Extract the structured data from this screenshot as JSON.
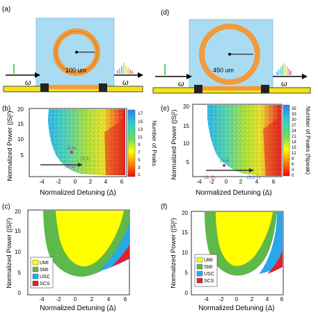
{
  "panel_labels": {
    "a": "(a)",
    "b": "(b)",
    "c": "(c)",
    "d": "(d)",
    "e": "(e)",
    "f": "(f)"
  },
  "schematic_left": {
    "radius_label": "100 um",
    "input_symbol": "ω",
    "output_symbol": "ω"
  },
  "schematic_right": {
    "radius_label": "450 um",
    "input_symbol": "ω",
    "output_symbol": "ω"
  },
  "colors": {
    "cavity_bg": "#a9dcf2",
    "ring": "#f39a3a",
    "bus": "#f2e21a",
    "umi": "#ffff00",
    "smi": "#5fb84a",
    "usc": "#2aa6ea",
    "scs": "#e0202a"
  },
  "chart_data": [
    {
      "type": "heatmap",
      "panel": "b",
      "xlabel": "Normalized Detuning (Δ)",
      "ylabel": "Normalized Power (|S|²)",
      "xlim": [
        -6,
        6
      ],
      "ylim": [
        0,
        20
      ],
      "xticks": [
        "-4",
        "-2",
        "0",
        "2",
        "4",
        "6"
      ],
      "yticks": [
        "5",
        "10",
        "15",
        "20"
      ],
      "colorbar_label": "Number of Peaks",
      "colorbar_ticks": [
        "17",
        "15",
        "13",
        "11",
        "9",
        "7",
        "5",
        "3",
        "1"
      ],
      "annotations": [
        {
          "text": "(3,-2)",
          "x": -2,
          "y": 3
        },
        {
          "text": "(0,6)",
          "x": 0,
          "y": 6.3
        },
        {
          "text": "(3,1)",
          "x": 0.9,
          "y": 3
        }
      ]
    },
    {
      "type": "heatmap",
      "panel": "e",
      "xlabel": "Normalized Detuning (Δ)",
      "ylabel": "Normalized Power (|S|²)",
      "xlim": [
        -6,
        6
      ],
      "ylim": [
        0,
        20
      ],
      "xticks": [
        "-4",
        "-2",
        "0",
        "2",
        "4",
        "6"
      ],
      "yticks": [
        "5",
        "10",
        "15",
        "20"
      ],
      "colorbar_label": "Number of Peaks (Npeak)",
      "colorbar_ticks": [
        "35",
        "33",
        "30",
        "27",
        "24",
        "21",
        "18",
        "15",
        "12",
        "9",
        "6",
        "3",
        "0"
      ],
      "annotations": [
        {
          "text": "(3,-2)",
          "x": -2,
          "y": 3.8
        },
        {
          "text": "(0,5)",
          "x": 0,
          "y": 5.3
        },
        {
          "text": "(3,2.7)",
          "x": 2.7,
          "y": 3.8
        }
      ]
    },
    {
      "type": "area",
      "panel": "c",
      "xlabel": "Normalized Detuning (Δ)",
      "ylabel": "Normalized Power (|S|²)",
      "xlim": [
        -6,
        6
      ],
      "ylim": [
        0,
        20
      ],
      "xticks": [
        "-4",
        "-2",
        "0",
        "2",
        "4",
        "6"
      ],
      "yticks": [
        "0",
        "5",
        "10",
        "15",
        "20"
      ],
      "legend": [
        "UMI",
        "SMI",
        "USC",
        "SCS"
      ],
      "legend_position": "left"
    },
    {
      "type": "area",
      "panel": "f",
      "xlabel": "Normalized Detuning (Δ)",
      "ylabel": "Normalized Power (|S|²)",
      "xlim": [
        -6,
        6
      ],
      "ylim": [
        0,
        20
      ],
      "xticks": [
        "-4",
        "-2",
        "0",
        "2",
        "4",
        "6"
      ],
      "yticks": [
        "0",
        "5",
        "10",
        "15",
        "20"
      ],
      "legend": [
        "UMI",
        "SMI",
        "USC",
        "SCS"
      ],
      "legend_position": "left"
    }
  ]
}
